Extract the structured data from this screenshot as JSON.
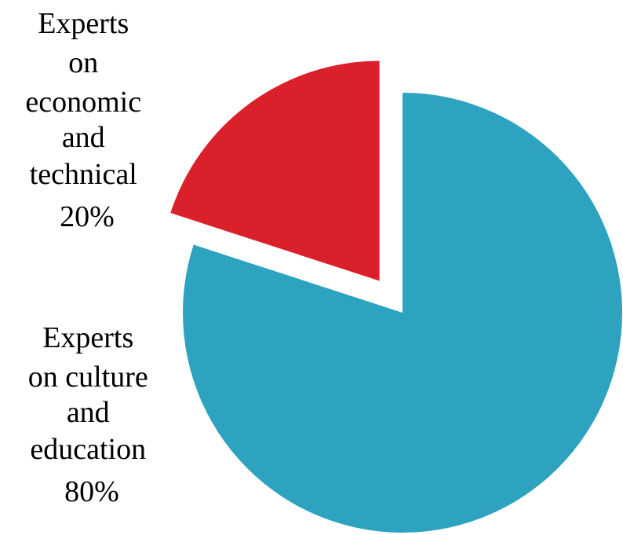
{
  "chart_data": {
    "type": "pie",
    "title": "",
    "slices": [
      {
        "label": "Experts on culture and education",
        "label_lines": [
          "Experts",
          "on culture",
          "and",
          "education"
        ],
        "value": 80,
        "value_label": "80%",
        "color": "#2EA3BF",
        "exploded": false
      },
      {
        "label": "Experts on economic and technical",
        "label_lines": [
          "Experts",
          "on",
          "economic",
          "and",
          "technical"
        ],
        "value": 20,
        "value_label": "20%",
        "color": "#DA202A",
        "exploded": true
      }
    ],
    "legend": "none"
  }
}
